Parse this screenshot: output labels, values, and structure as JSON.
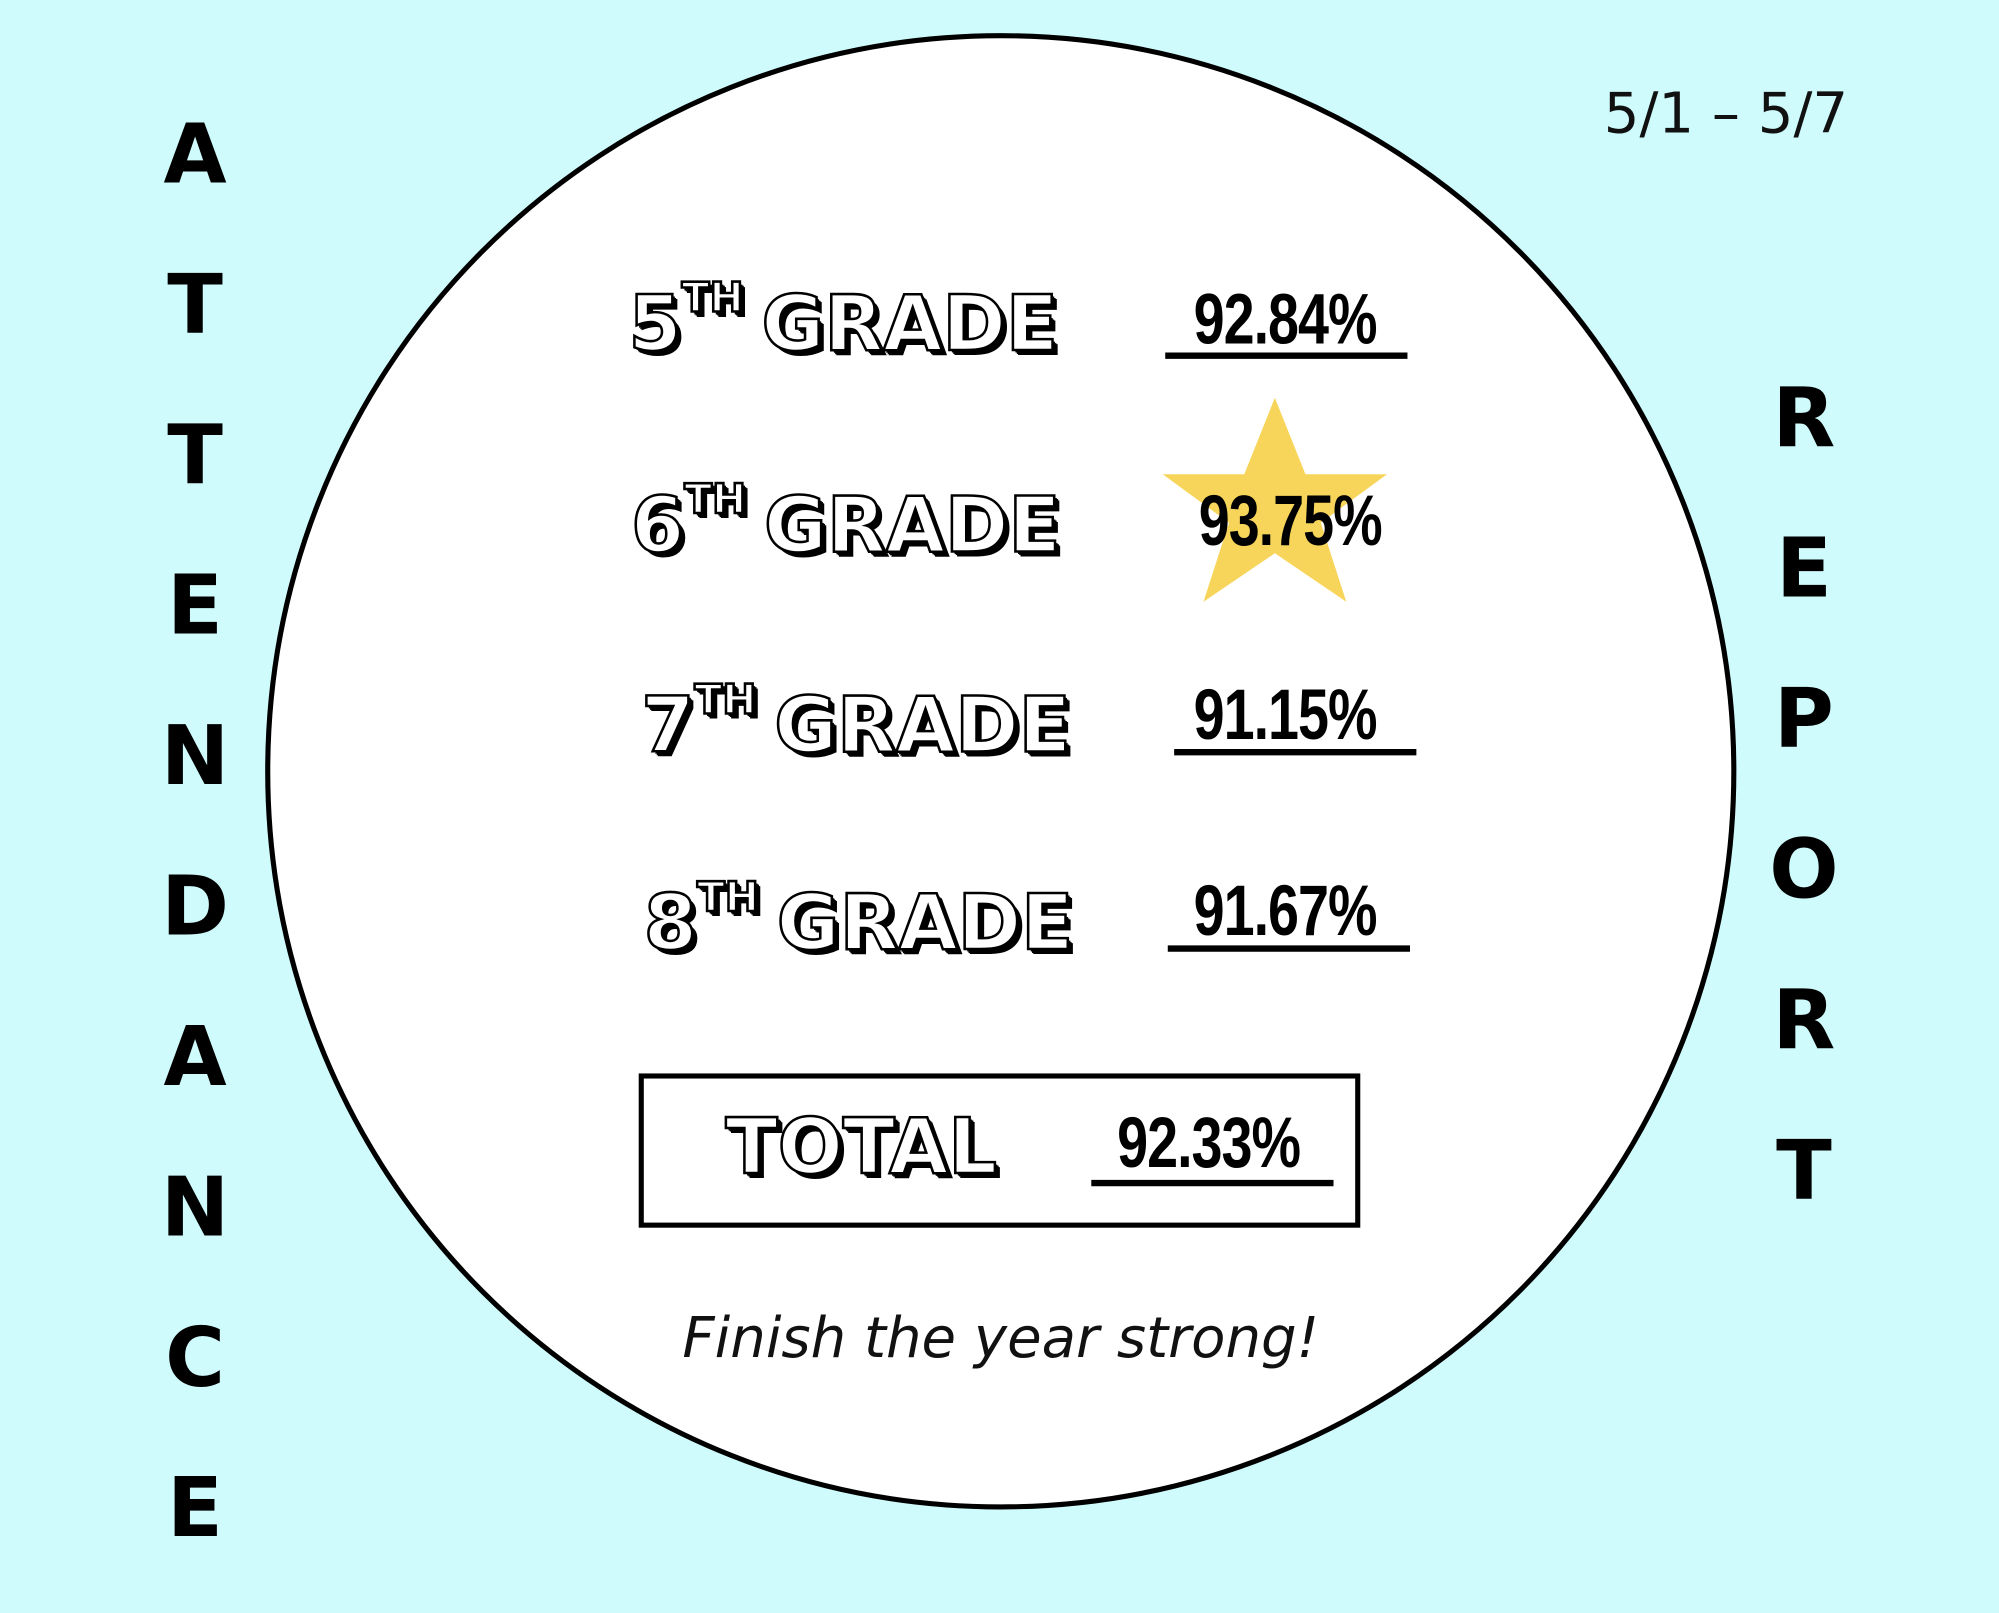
{
  "title_left": "ATTENDANCE",
  "title_right": "REPORT",
  "date_range": "5/1 – 5/7",
  "grades": [
    {
      "number": "5",
      "suffix": "TH",
      "label": "GRADE",
      "value": "92.84%"
    },
    {
      "number": "6",
      "suffix": "TH",
      "label": "GRADE",
      "value": "93.75%"
    },
    {
      "number": "7",
      "suffix": "TH",
      "label": "GRADE",
      "value": "91.15%"
    },
    {
      "number": "8",
      "suffix": "TH",
      "label": "GRADE",
      "value": "91.67%"
    }
  ],
  "total": {
    "label": "TOTAL",
    "value": "92.33%"
  },
  "tagline": "Finish the year strong!"
}
